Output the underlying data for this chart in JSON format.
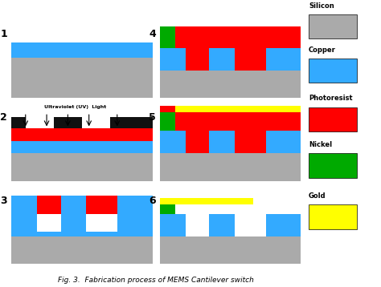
{
  "colors": {
    "silicon": "#aaaaaa",
    "copper": "#33aaff",
    "photoresist": "#ff0000",
    "nickel": "#00aa00",
    "gold": "#ffff00",
    "black": "#111111",
    "white": "#ffffff",
    "bg": "#ffffff"
  },
  "legend_items": [
    {
      "label": "Silicon",
      "color": "#aaaaaa"
    },
    {
      "label": "Copper",
      "color": "#33aaff"
    },
    {
      "label": "Photoresist",
      "color": "#ff0000"
    },
    {
      "label": "Nickel",
      "color": "#00aa00"
    },
    {
      "label": "Gold",
      "color": "#ffff00"
    }
  ],
  "caption": "Fig. 3.  Fabrication process of MEMS Cantilever switch",
  "uv_text": "Ultraviolet (UV)  Light"
}
